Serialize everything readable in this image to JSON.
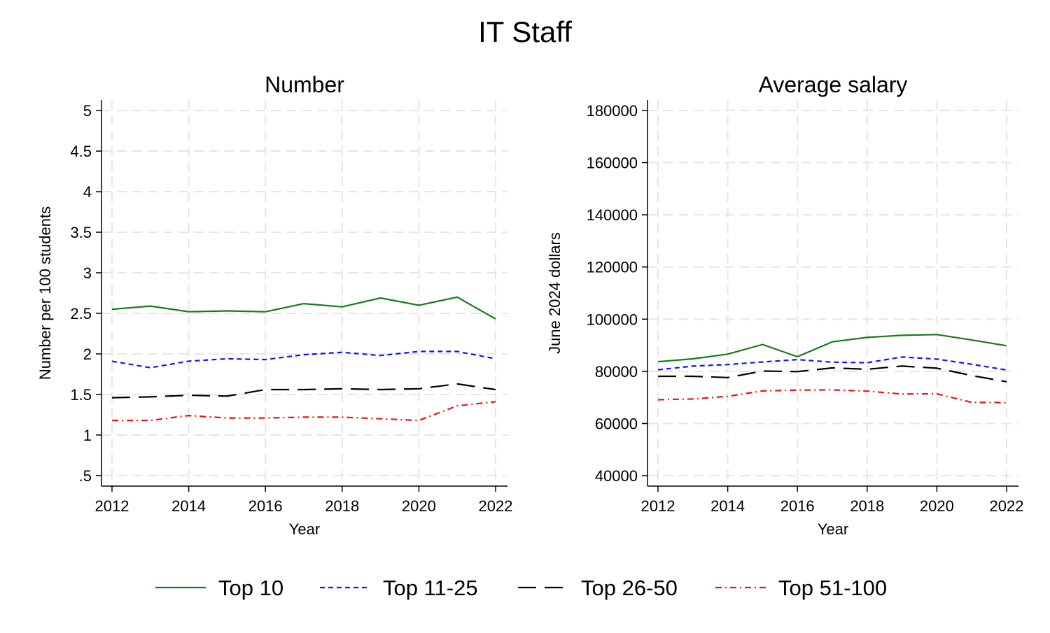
{
  "figure": {
    "title": "IT Staff"
  },
  "colors": {
    "Top 10": "#1a7a1a",
    "Top 11-25": "#1414e6",
    "Top 26-50": "#000000",
    "Top 51-100": "#e61414"
  },
  "legend": {
    "position": "bottom",
    "items": [
      {
        "label": "Top 10",
        "style": "solid"
      },
      {
        "label": "Top 11-25",
        "style": "dotted"
      },
      {
        "label": "Top 26-50",
        "style": "long-dash"
      },
      {
        "label": "Top 51-100",
        "style": "dash-dot"
      }
    ]
  },
  "chart_data": [
    {
      "type": "line",
      "title": "Number",
      "xlabel": "Year",
      "ylabel": "Number per 100 students",
      "x": [
        2012,
        2013,
        2014,
        2015,
        2016,
        2017,
        2018,
        2019,
        2020,
        2021,
        2022
      ],
      "xticks": [
        "2012",
        "2014",
        "2016",
        "2018",
        "2020",
        "2022"
      ],
      "yticks": [
        ".5",
        "1",
        "1.5",
        "2",
        "2.5",
        "3",
        "3.5",
        "4",
        "4.5",
        "5"
      ],
      "ylim": [
        0.37,
        5.13
      ],
      "grid": true,
      "series": [
        {
          "name": "Top 10",
          "values": [
            2.55,
            2.59,
            2.52,
            2.53,
            2.52,
            2.62,
            2.58,
            2.69,
            2.6,
            2.7,
            2.43
          ]
        },
        {
          "name": "Top 11-25",
          "values": [
            1.91,
            1.83,
            1.91,
            1.94,
            1.93,
            1.99,
            2.02,
            1.98,
            2.03,
            2.03,
            1.94
          ]
        },
        {
          "name": "Top 26-50",
          "values": [
            1.46,
            1.47,
            1.49,
            1.48,
            1.56,
            1.56,
            1.57,
            1.56,
            1.57,
            1.63,
            1.56
          ]
        },
        {
          "name": "Top 51-100",
          "values": [
            1.18,
            1.18,
            1.24,
            1.21,
            1.21,
            1.22,
            1.22,
            1.2,
            1.18,
            1.36,
            1.41
          ]
        }
      ]
    },
    {
      "type": "line",
      "title": "Average salary",
      "xlabel": "Year",
      "ylabel": "June 2024 dollars",
      "x": [
        2012,
        2013,
        2014,
        2015,
        2016,
        2017,
        2018,
        2019,
        2020,
        2021,
        2022
      ],
      "xticks": [
        "2012",
        "2014",
        "2016",
        "2018",
        "2020",
        "2022"
      ],
      "yticks": [
        "40000",
        "60000",
        "80000",
        "100000",
        "120000",
        "140000",
        "160000",
        "180000"
      ],
      "ylim": [
        36000,
        184000
      ],
      "grid": true,
      "series": [
        {
          "name": "Top 10",
          "values": [
            83700,
            84800,
            86600,
            90300,
            85600,
            91300,
            93000,
            93800,
            94100,
            92000,
            89800
          ]
        },
        {
          "name": "Top 11-25",
          "values": [
            80600,
            82000,
            82600,
            83600,
            84500,
            83500,
            83300,
            85500,
            84700,
            82700,
            80500
          ]
        },
        {
          "name": "Top 26-50",
          "values": [
            78100,
            78100,
            77600,
            80100,
            79900,
            81300,
            80800,
            82000,
            81200,
            78400,
            76000
          ]
        },
        {
          "name": "Top 51-100",
          "values": [
            69100,
            69400,
            70400,
            72500,
            72800,
            72900,
            72400,
            71300,
            71400,
            68100,
            68000
          ]
        }
      ]
    }
  ]
}
